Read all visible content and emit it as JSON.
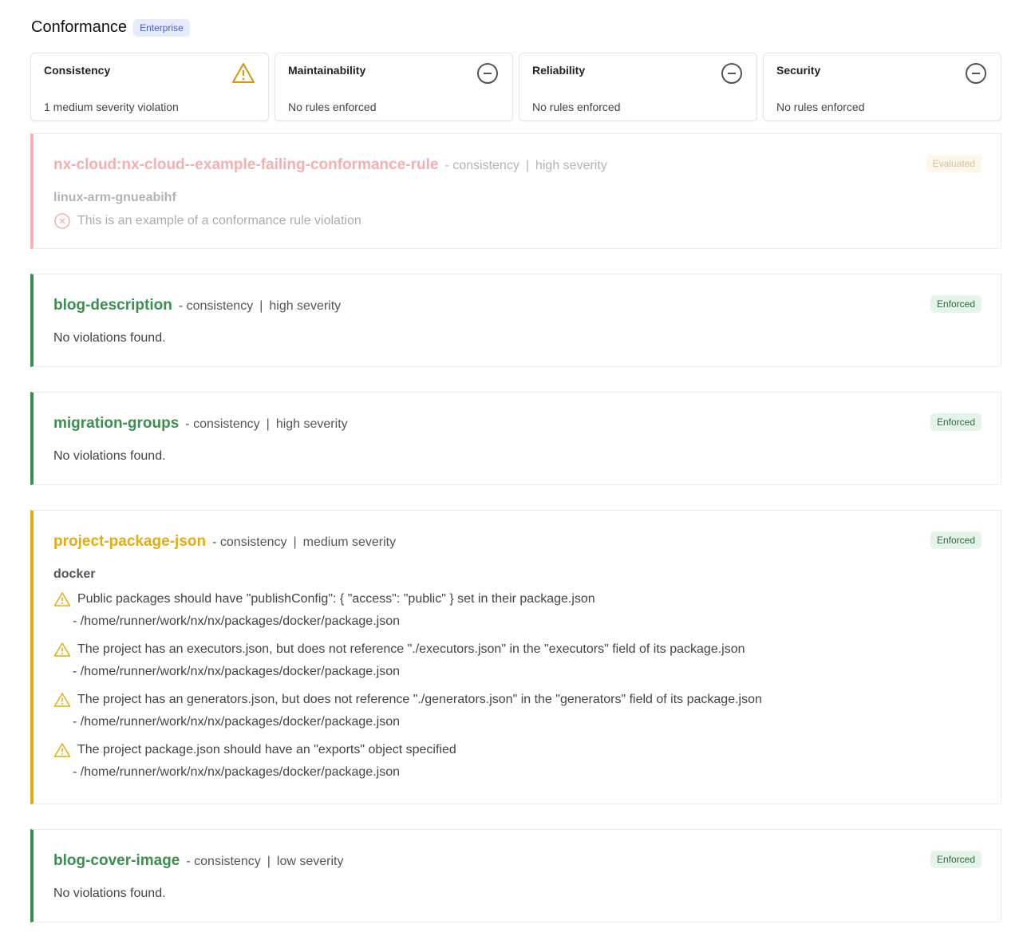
{
  "header": {
    "title": "Conformance",
    "badge": "Enterprise"
  },
  "cards": [
    {
      "title": "Consistency",
      "summary": "1 medium severity violation",
      "icon": "warning-icon"
    },
    {
      "title": "Maintainability",
      "summary": "No rules enforced",
      "icon": "minus-circle-icon"
    },
    {
      "title": "Reliability",
      "summary": "No rules enforced",
      "icon": "minus-circle-icon"
    },
    {
      "title": "Security",
      "summary": "No rules enforced",
      "icon": "minus-circle-icon"
    }
  ],
  "rules": [
    {
      "name": "nx-cloud:nx-cloud--example-failing-conformance-rule",
      "category": "consistency",
      "severity": "high severity",
      "status": "Evaluated",
      "project": "linux-arm-gnueabihf",
      "violation": "This is an example of a conformance rule violation"
    },
    {
      "name": "blog-description",
      "category": "consistency",
      "severity": "high severity",
      "status": "Enforced",
      "message": "No violations found."
    },
    {
      "name": "migration-groups",
      "category": "consistency",
      "severity": "high severity",
      "status": "Enforced",
      "message": "No violations found."
    },
    {
      "name": "project-package-json",
      "category": "consistency",
      "severity": "medium severity",
      "status": "Enforced",
      "project": "docker",
      "violations": [
        {
          "text": "Public packages should have \"publishConfig\": { \"access\": \"public\" } set in their package.json",
          "path": "- /home/runner/work/nx/nx/packages/docker/package.json"
        },
        {
          "text": "The project has an executors.json, but does not reference \"./executors.json\" in the \"executors\" field of its package.json",
          "path": "- /home/runner/work/nx/nx/packages/docker/package.json"
        },
        {
          "text": "The project has an generators.json, but does not reference \"./generators.json\" in the \"generators\" field of its package.json",
          "path": "- /home/runner/work/nx/nx/packages/docker/package.json"
        },
        {
          "text": "The project package.json should have an \"exports\" object specified",
          "path": "- /home/runner/work/nx/nx/packages/docker/package.json"
        }
      ]
    },
    {
      "name": "blog-cover-image",
      "category": "consistency",
      "severity": "low severity",
      "status": "Enforced",
      "message": "No violations found."
    }
  ],
  "colors": {
    "success": "#3d8f4f",
    "warning": "#e3ac12",
    "error": "#e57373"
  }
}
